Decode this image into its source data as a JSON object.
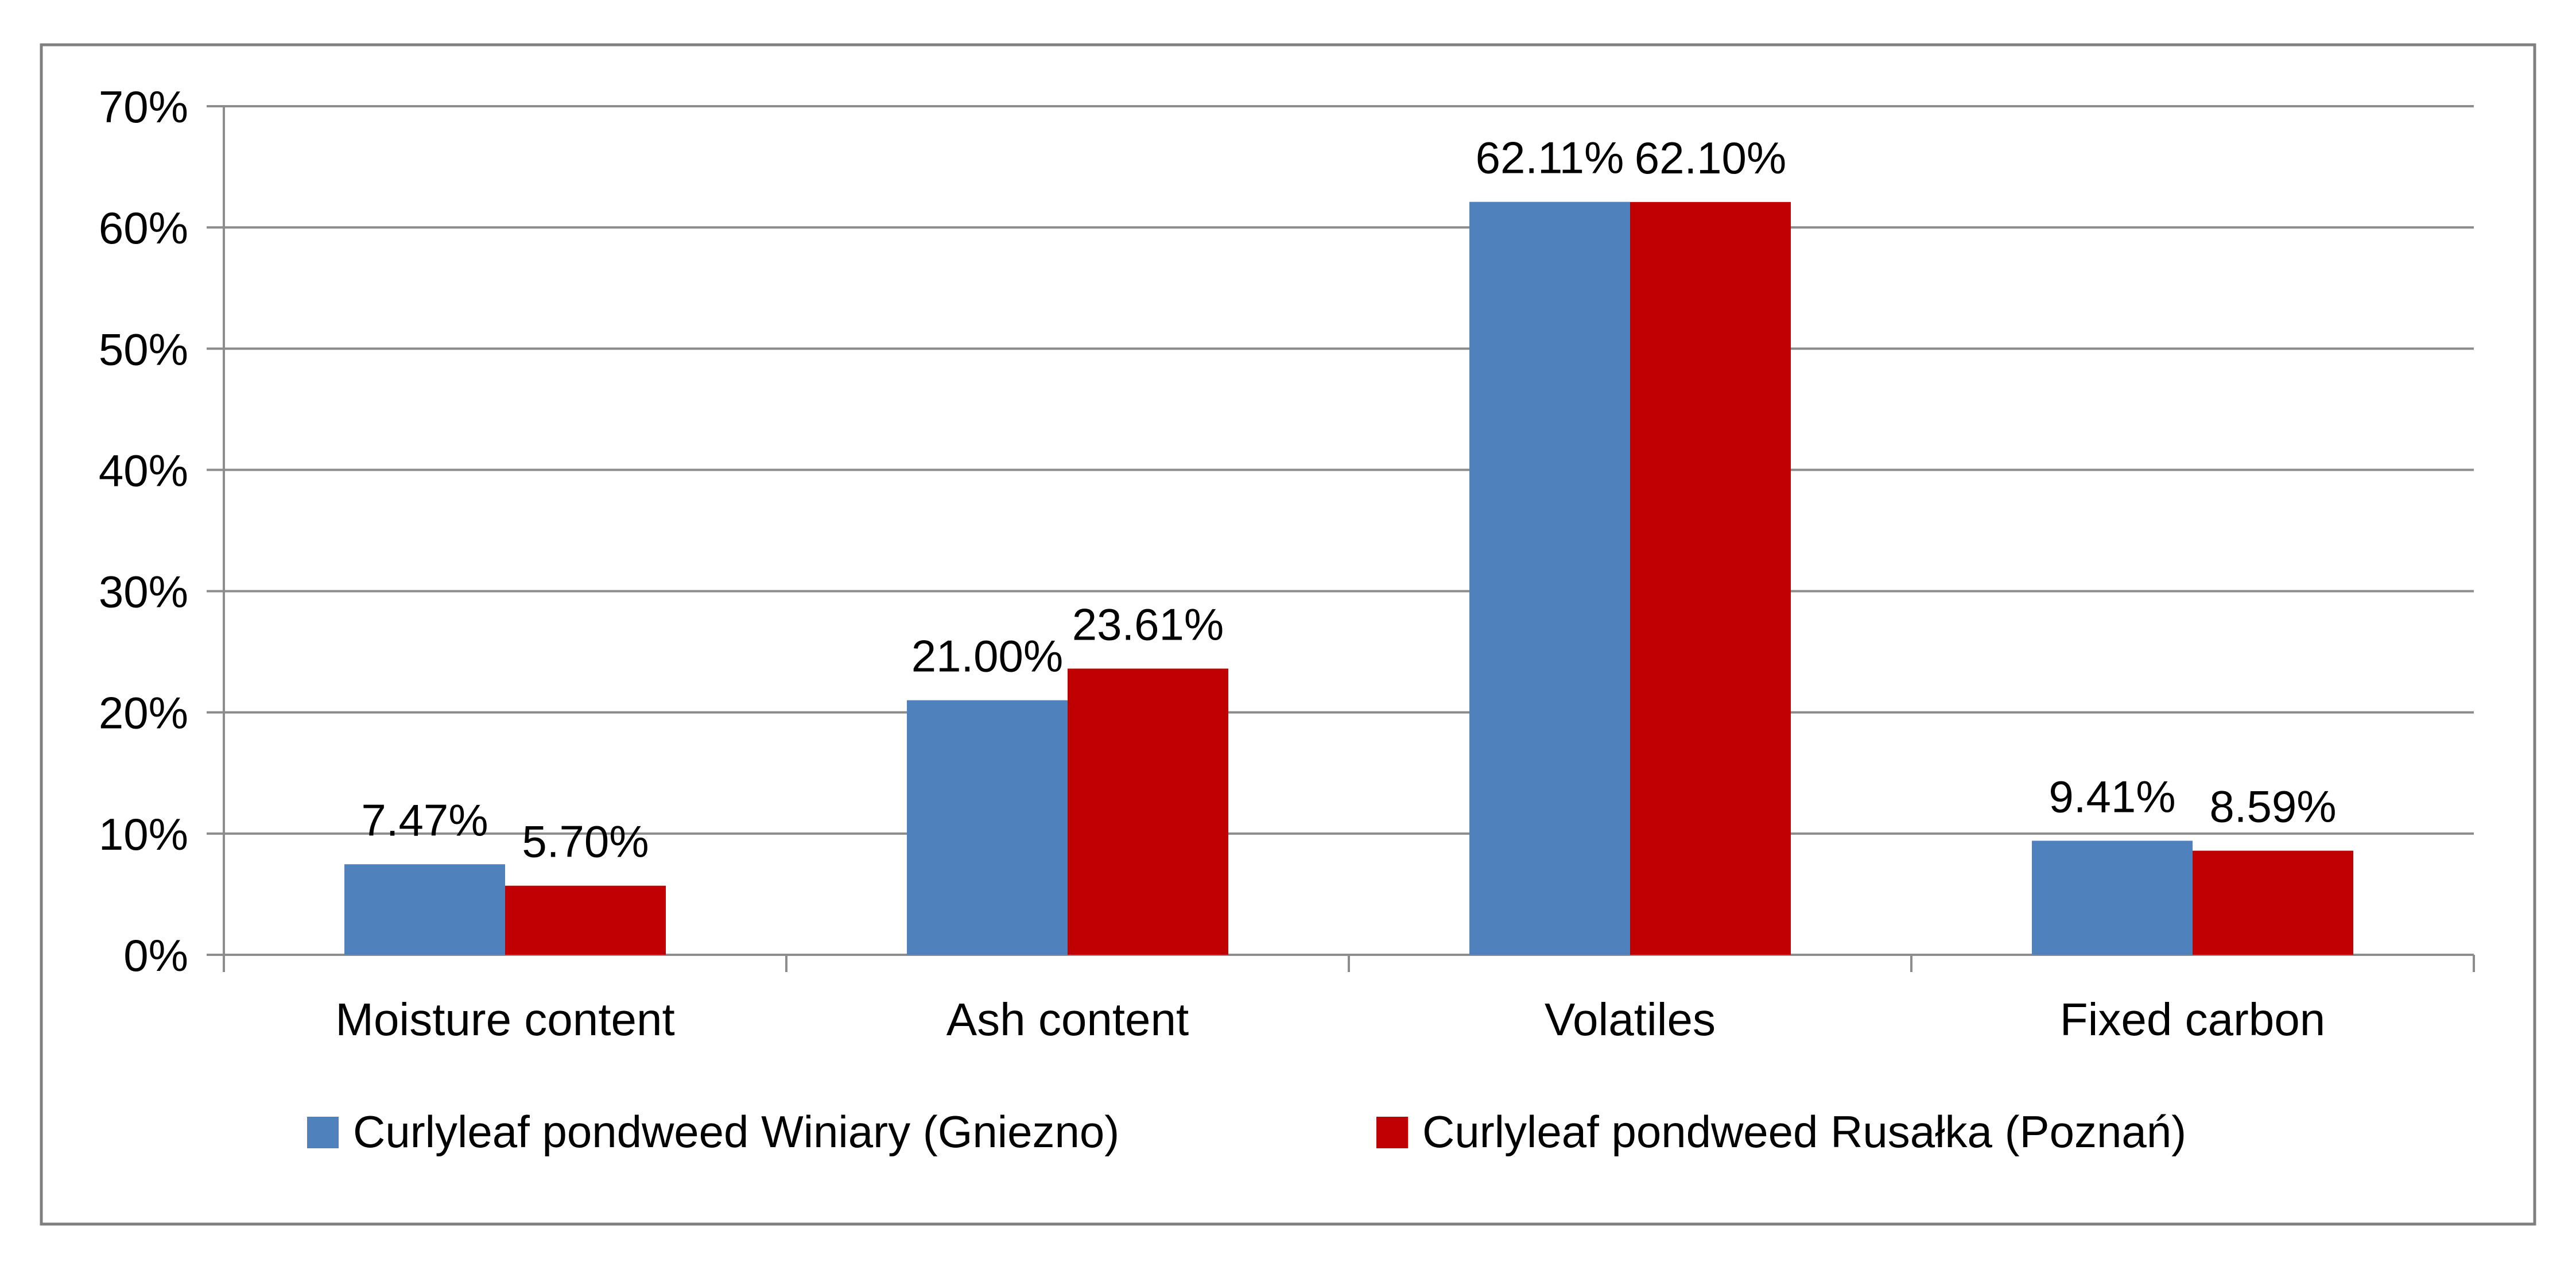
{
  "chart_data": {
    "type": "bar",
    "categories": [
      "Moisture content",
      "Ash content",
      "Volatiles",
      "Fixed carbon"
    ],
    "series": [
      {
        "name": "Curlyleaf pondweed Winiary (Gniezno)",
        "color": "#4F81BD",
        "values": [
          7.47,
          21.0,
          62.11,
          9.41
        ],
        "labels": [
          "7.47%",
          "21.00%",
          "62.11%",
          "9.41%"
        ]
      },
      {
        "name": "Curlyleaf pondweed Rusałka (Poznań)",
        "color": "#C00000",
        "values": [
          5.7,
          23.61,
          62.1,
          8.59
        ],
        "labels": [
          "5.70%",
          "23.61%",
          "62.10%",
          "8.59%"
        ]
      }
    ],
    "ylim": [
      0,
      70
    ],
    "yticks": [
      0,
      10,
      20,
      30,
      40,
      50,
      60,
      70
    ],
    "ytick_labels": [
      "0%",
      "10%",
      "20%",
      "30%",
      "40%",
      "50%",
      "60%",
      "70%"
    ],
    "grid": true,
    "legend": "bottom",
    "title": "",
    "xlabel": "",
    "ylabel": ""
  },
  "colors": {
    "grid": "#8C8C8C",
    "axis": "#8C8C8C",
    "border": "#7F7F7F",
    "text": "#000000"
  }
}
